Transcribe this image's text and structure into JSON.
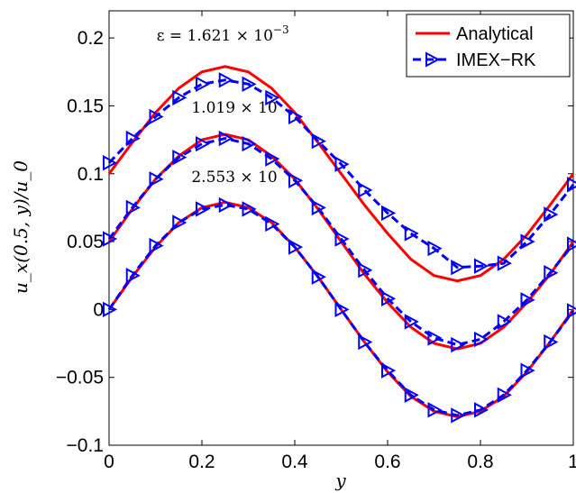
{
  "chart_data": {
    "type": "line",
    "xlabel": "y",
    "ylabel": "u_x(0.5, y)/u_0",
    "xlim": [
      0,
      1
    ],
    "ylim": [
      -0.1,
      0.22
    ],
    "xticks": [
      "0",
      "0.2",
      "0.4",
      "0.6",
      "0.8",
      "1"
    ],
    "xtick_values": [
      0,
      0.2,
      0.4,
      0.6,
      0.8,
      1
    ],
    "yticks": [
      "−0.1",
      "−0.05",
      "0",
      "0.05",
      "0.1",
      "0.15",
      "0.2"
    ],
    "ytick_values": [
      -0.1,
      -0.05,
      0,
      0.05,
      0.1,
      0.15,
      0.2
    ],
    "grid": false,
    "legend": {
      "placement": "top-right",
      "entries": [
        {
          "name": "Analytical",
          "color": "#ff0000",
          "style": "solid"
        },
        {
          "name": "IMEX−RK",
          "color": "#0000ff",
          "style": "dashed",
          "marker": "triangle-right"
        }
      ]
    },
    "annotations": [
      {
        "text": "ε = 1.621 × 10",
        "exp": "−3",
        "x": 0.245,
        "y": 0.198
      },
      {
        "text": "1.019 × 10",
        "exp": "",
        "x": 0.27,
        "y": 0.145
      },
      {
        "text": "2.553 × 10",
        "exp": "",
        "x": 0.27,
        "y": 0.094
      }
    ],
    "series": [
      {
        "name": "Analytical",
        "group": "ε = 1.621 × 10⁻³",
        "color": "#ff0000",
        "x": [
          0,
          0.05,
          0.1,
          0.15,
          0.2,
          0.25,
          0.3,
          0.35,
          0.4,
          0.45,
          0.5,
          0.55,
          0.6,
          0.65,
          0.7,
          0.75,
          0.8,
          0.85,
          0.9,
          0.95,
          1
        ],
        "values": [
          0.1,
          0.123,
          0.145,
          0.163,
          0.175,
          0.179,
          0.175,
          0.163,
          0.145,
          0.123,
          0.1,
          0.077,
          0.056,
          0.037,
          0.025,
          0.021,
          0.025,
          0.037,
          0.055,
          0.077,
          0.1
        ]
      },
      {
        "name": "IMEX−RK",
        "group": "ε = 1.621 × 10⁻³",
        "color": "#0000ff",
        "x": [
          0,
          0.05,
          0.1,
          0.15,
          0.2,
          0.25,
          0.3,
          0.35,
          0.4,
          0.45,
          0.5,
          0.55,
          0.6,
          0.65,
          0.7,
          0.75,
          0.8,
          0.85,
          0.9,
          0.95,
          1
        ],
        "values": [
          0.108,
          0.126,
          0.142,
          0.156,
          0.166,
          0.169,
          0.166,
          0.156,
          0.142,
          0.124,
          0.107,
          0.088,
          0.071,
          0.056,
          0.045,
          0.031,
          0.032,
          0.034,
          0.05,
          0.07,
          0.092
        ]
      },
      {
        "name": "Analytical",
        "group": "1.019 × 10",
        "color": "#ff0000",
        "x": [
          0,
          0.05,
          0.1,
          0.15,
          0.2,
          0.25,
          0.3,
          0.35,
          0.4,
          0.45,
          0.5,
          0.55,
          0.6,
          0.65,
          0.7,
          0.75,
          0.8,
          0.85,
          0.9,
          0.95,
          1
        ],
        "values": [
          0.05,
          0.074,
          0.096,
          0.113,
          0.125,
          0.129,
          0.125,
          0.113,
          0.096,
          0.074,
          0.05,
          0.026,
          0.005,
          -0.013,
          -0.025,
          -0.029,
          -0.025,
          -0.013,
          0.005,
          0.026,
          0.05
        ]
      },
      {
        "name": "IMEX−RK",
        "group": "1.019 × 10",
        "color": "#0000ff",
        "x": [
          0,
          0.05,
          0.1,
          0.15,
          0.2,
          0.25,
          0.3,
          0.35,
          0.4,
          0.45,
          0.5,
          0.55,
          0.6,
          0.65,
          0.7,
          0.75,
          0.8,
          0.85,
          0.9,
          0.95,
          1
        ],
        "values": [
          0.052,
          0.075,
          0.096,
          0.112,
          0.122,
          0.126,
          0.122,
          0.111,
          0.095,
          0.075,
          0.052,
          0.029,
          0.008,
          -0.009,
          -0.021,
          -0.026,
          -0.022,
          -0.009,
          0.007,
          0.027,
          0.048
        ]
      },
      {
        "name": "Analytical",
        "group": "2.553 × 10",
        "color": "#ff0000",
        "x": [
          0,
          0.05,
          0.1,
          0.15,
          0.2,
          0.25,
          0.3,
          0.35,
          0.4,
          0.45,
          0.5,
          0.55,
          0.6,
          0.65,
          0.7,
          0.75,
          0.8,
          0.85,
          0.9,
          0.95,
          1
        ],
        "values": [
          0,
          0.024,
          0.046,
          0.064,
          0.075,
          0.079,
          0.075,
          0.064,
          0.046,
          0.024,
          0,
          -0.024,
          -0.046,
          -0.064,
          -0.075,
          -0.079,
          -0.075,
          -0.064,
          -0.046,
          -0.024,
          0
        ]
      },
      {
        "name": "IMEX−RK",
        "group": "2.553 × 10",
        "color": "#0000ff",
        "x": [
          0,
          0.05,
          0.1,
          0.15,
          0.2,
          0.25,
          0.3,
          0.35,
          0.4,
          0.45,
          0.5,
          0.55,
          0.6,
          0.65,
          0.7,
          0.75,
          0.8,
          0.85,
          0.9,
          0.95,
          1
        ],
        "values": [
          0,
          0.025,
          0.047,
          0.064,
          0.074,
          0.077,
          0.074,
          0.063,
          0.046,
          0.024,
          0,
          -0.024,
          -0.045,
          -0.063,
          -0.074,
          -0.078,
          -0.074,
          -0.063,
          -0.045,
          -0.024,
          -0.001
        ]
      }
    ]
  }
}
